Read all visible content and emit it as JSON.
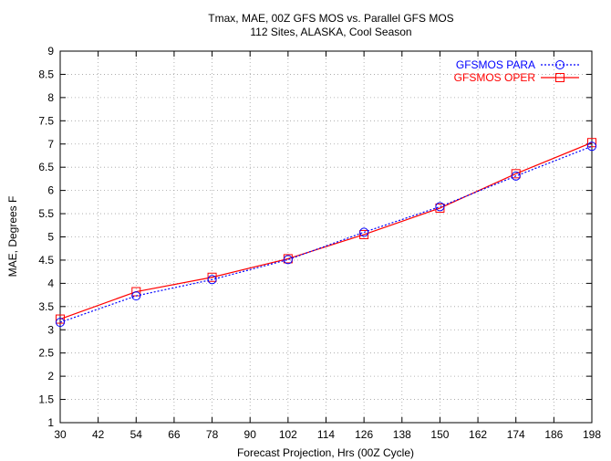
{
  "chart_data": {
    "type": "line",
    "title": "Tmax, MAE, 00Z GFS MOS vs. Parallel GFS MOS",
    "subtitle": "112 Sites, ALASKA, Cool Season",
    "xlabel": "Forecast Projection, Hrs (00Z Cycle)",
    "ylabel": "MAE, Degrees F",
    "xlim": [
      30,
      198
    ],
    "ylim": [
      1,
      9
    ],
    "x_ticks": [
      30,
      42,
      54,
      66,
      78,
      90,
      102,
      114,
      126,
      138,
      150,
      162,
      174,
      186,
      198
    ],
    "y_ticks": [
      1,
      1.5,
      2,
      2.5,
      3,
      3.5,
      4,
      4.5,
      5,
      5.5,
      6,
      6.5,
      7,
      7.5,
      8,
      8.5,
      9
    ],
    "grid": true,
    "legend_position": "top-right",
    "x": [
      30,
      54,
      78,
      102,
      126,
      150,
      174,
      198
    ],
    "series": [
      {
        "name": "GFSMOS PARA",
        "color": "#0000ff",
        "line_style": "dotted",
        "marker": "circle",
        "values": [
          3.16,
          3.73,
          4.08,
          4.51,
          5.1,
          5.65,
          6.31,
          6.95
        ]
      },
      {
        "name": "GFSMOS OPER",
        "color": "#ff0000",
        "line_style": "solid",
        "marker": "square",
        "values": [
          3.23,
          3.82,
          4.13,
          4.53,
          5.05,
          5.62,
          6.36,
          7.03
        ]
      }
    ]
  }
}
